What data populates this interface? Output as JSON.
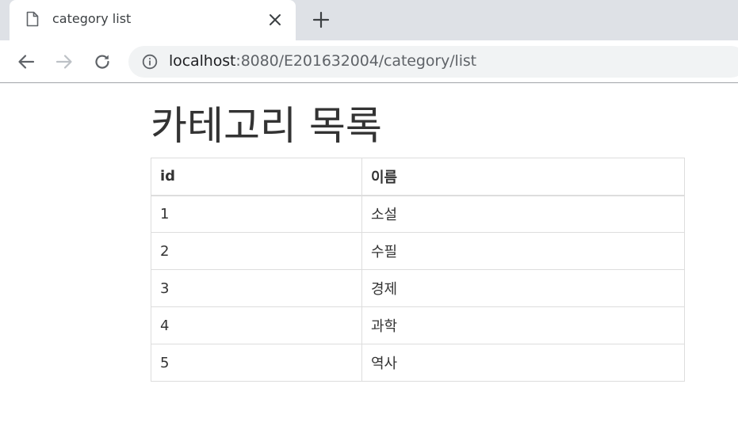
{
  "browser": {
    "tab_title": "category list",
    "url_host": "localhost",
    "url_rest": ":8080/E201632004/category/list"
  },
  "page": {
    "title": "카테고리 목록",
    "table": {
      "headers": [
        "id",
        "이름"
      ],
      "rows": [
        [
          "1",
          "소설"
        ],
        [
          "2",
          "수필"
        ],
        [
          "3",
          "경제"
        ],
        [
          "4",
          "과학"
        ],
        [
          "5",
          "역사"
        ]
      ]
    }
  },
  "icons": {
    "favicon": "document-icon",
    "tab_close": "close-icon",
    "new_tab": "plus-icon",
    "back": "back-arrow-icon",
    "forward": "forward-arrow-icon",
    "reload": "reload-icon",
    "site_info": "info-icon"
  }
}
